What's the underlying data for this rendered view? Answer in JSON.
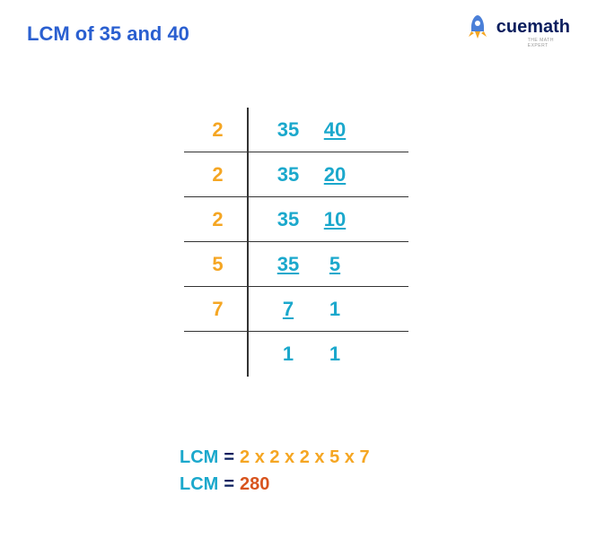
{
  "title": "LCM of 35 and 40",
  "logo": {
    "text": "cuemath",
    "subtitle": "THE MATH EXPERT"
  },
  "colors": {
    "title": "#2a5fd0",
    "divisor": "#f5a623",
    "value": "#1ba8cc",
    "lcm_label": "#1ba8cc",
    "equals": "#0a1e5e",
    "factors": "#f5a623",
    "result": "#d8541e",
    "rocket_body": "#4a7fd8",
    "rocket_flame": "#f5a623"
  },
  "rows": [
    {
      "divisor": "2",
      "values": [
        {
          "n": "35",
          "u": false
        },
        {
          "n": "40",
          "u": true
        }
      ]
    },
    {
      "divisor": "2",
      "values": [
        {
          "n": "35",
          "u": false
        },
        {
          "n": "20",
          "u": true
        }
      ]
    },
    {
      "divisor": "2",
      "values": [
        {
          "n": "35",
          "u": false
        },
        {
          "n": "10",
          "u": true
        }
      ]
    },
    {
      "divisor": "5",
      "values": [
        {
          "n": "35",
          "u": true
        },
        {
          "n": "5",
          "u": true
        }
      ]
    },
    {
      "divisor": "7",
      "values": [
        {
          "n": "7",
          "u": true
        },
        {
          "n": "1",
          "u": false
        }
      ]
    },
    {
      "divisor": "",
      "values": [
        {
          "n": "1",
          "u": false
        },
        {
          "n": "1",
          "u": false
        }
      ]
    }
  ],
  "result": {
    "label": "LCM",
    "eq": "=",
    "factors": "2 x 2 x 2 x 5 x 7",
    "value": "280"
  }
}
